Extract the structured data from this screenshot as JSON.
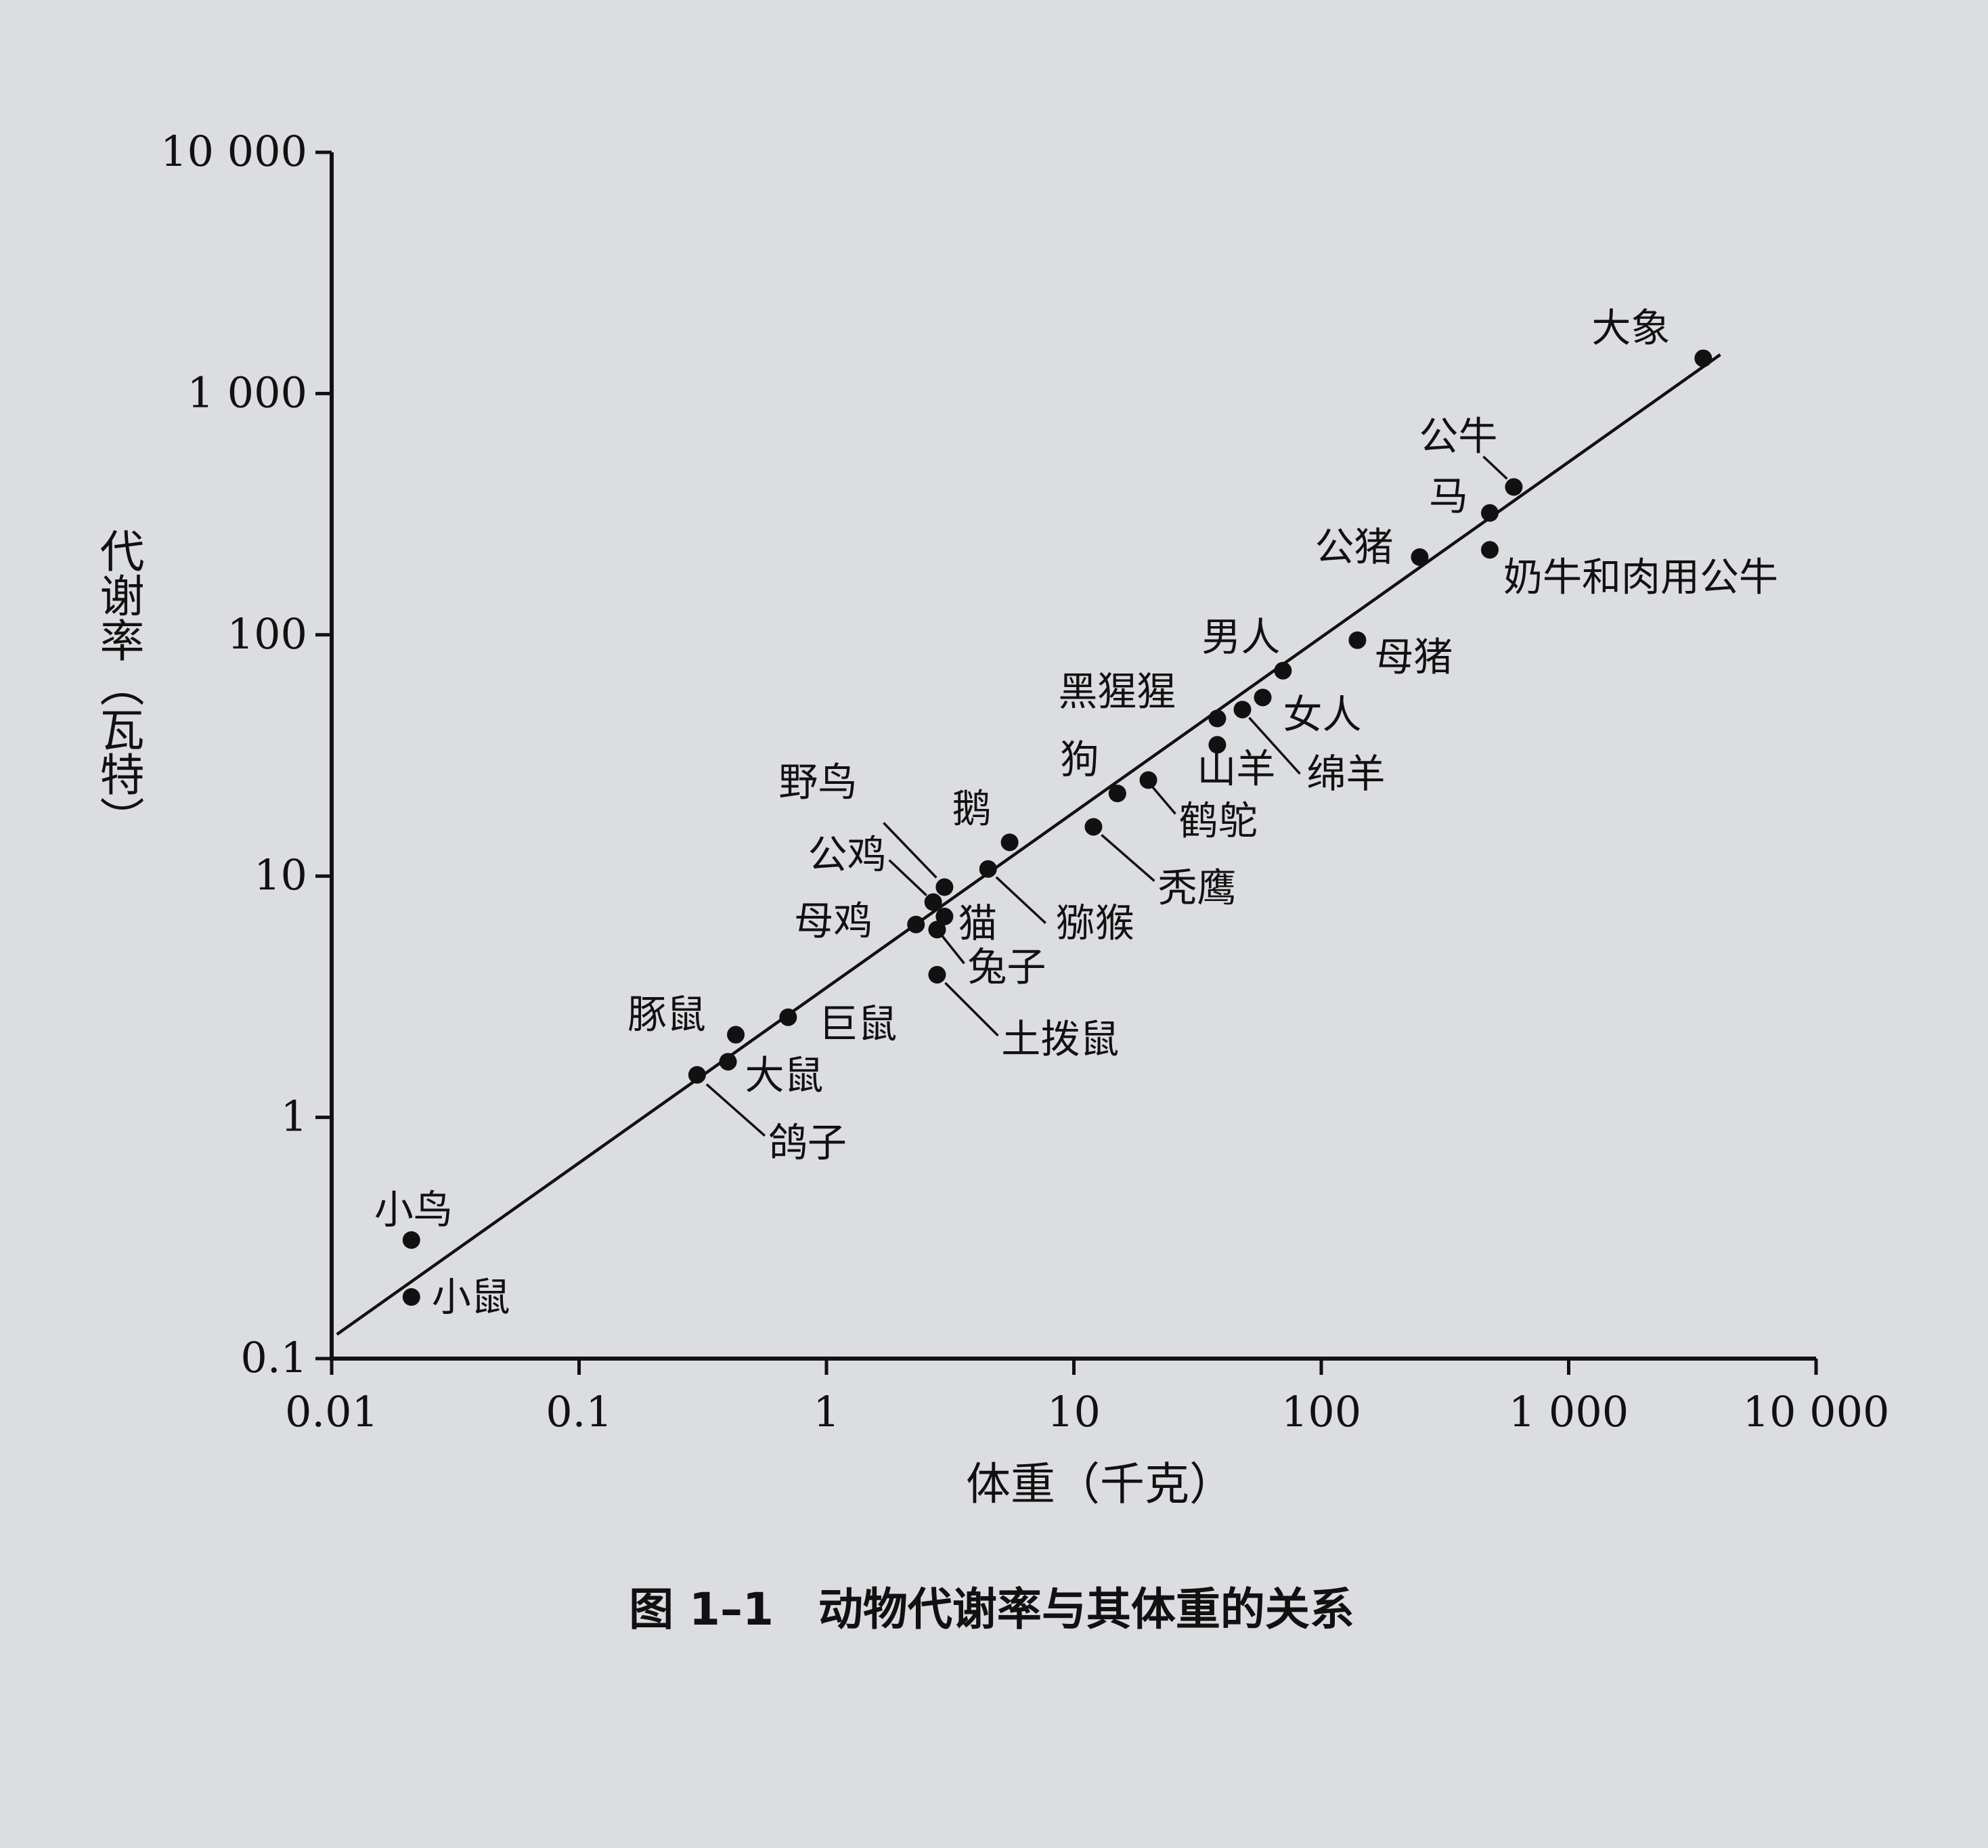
{
  "chart_data": {
    "type": "scatter",
    "title": "",
    "caption": "图 1–1　动物代谢率与其体重的关系",
    "xlabel": "体重（千克）",
    "ylabel": "代谢率（瓦特）",
    "x_scale": "log",
    "y_scale": "log",
    "xlim": [
      0.01,
      10000
    ],
    "ylim": [
      0.1,
      10000
    ],
    "x_ticks": [
      0.01,
      0.1,
      1,
      10,
      100,
      1000,
      10000
    ],
    "x_tick_labels": [
      "0.01",
      "0.1",
      "1",
      "10",
      "100",
      "1 000",
      "10 000"
    ],
    "y_ticks": [
      0.1,
      1,
      10,
      100,
      1000,
      10000
    ],
    "y_tick_labels": [
      "0.1",
      "1",
      "10",
      "100",
      "1 000",
      "10 000"
    ],
    "grid": false,
    "legend": "none",
    "fit_line": {
      "x": [
        0.0105,
        4100
      ],
      "y": [
        0.126,
        1450
      ]
    },
    "points": [
      {
        "label": "小鼠",
        "x": 0.021,
        "y": 0.18
      },
      {
        "label": "小鸟",
        "x": 0.021,
        "y": 0.31
      },
      {
        "label": "鸽子",
        "x": 0.3,
        "y": 1.5
      },
      {
        "label": "大鼠",
        "x": 0.4,
        "y": 1.7
      },
      {
        "label": "豚鼠",
        "x": 0.43,
        "y": 2.2
      },
      {
        "label": "巨鼠",
        "x": 0.7,
        "y": 2.6
      },
      {
        "label": "母鸡",
        "x": 2.3,
        "y": 6.3
      },
      {
        "label": "公鸡",
        "x": 2.7,
        "y": 7.8
      },
      {
        "label": "野鸟",
        "x": 3.0,
        "y": 9.0
      },
      {
        "label": "猫",
        "x": 3.0,
        "y": 6.8
      },
      {
        "label": "兔子",
        "x": 2.8,
        "y": 6.0
      },
      {
        "label": "土拨鼠",
        "x": 2.8,
        "y": 3.9
      },
      {
        "label": "猕猴",
        "x": 4.5,
        "y": 10.7
      },
      {
        "label": "鹅",
        "x": 5.5,
        "y": 13.8
      },
      {
        "label": "秃鹰",
        "x": 12,
        "y": 16
      },
      {
        "label": "狗",
        "x": 15,
        "y": 22
      },
      {
        "label": "鹤鸵",
        "x": 20,
        "y": 25
      },
      {
        "label": "山羊",
        "x": 38,
        "y": 35
      },
      {
        "label": "黑猩猩",
        "x": 38,
        "y": 45
      },
      {
        "label": "绵羊",
        "x": 48,
        "y": 49
      },
      {
        "label": "女人",
        "x": 58,
        "y": 55
      },
      {
        "label": "男人",
        "x": 70,
        "y": 71
      },
      {
        "label": "母猪",
        "x": 140,
        "y": 95
      },
      {
        "label": "公猪",
        "x": 250,
        "y": 210
      },
      {
        "label": "奶牛和肉用公牛",
        "x": 480,
        "y": 225
      },
      {
        "label": "马",
        "x": 480,
        "y": 320
      },
      {
        "label": "公牛",
        "x": 600,
        "y": 410
      },
      {
        "label": "大象",
        "x": 3500,
        "y": 1400
      }
    ]
  }
}
